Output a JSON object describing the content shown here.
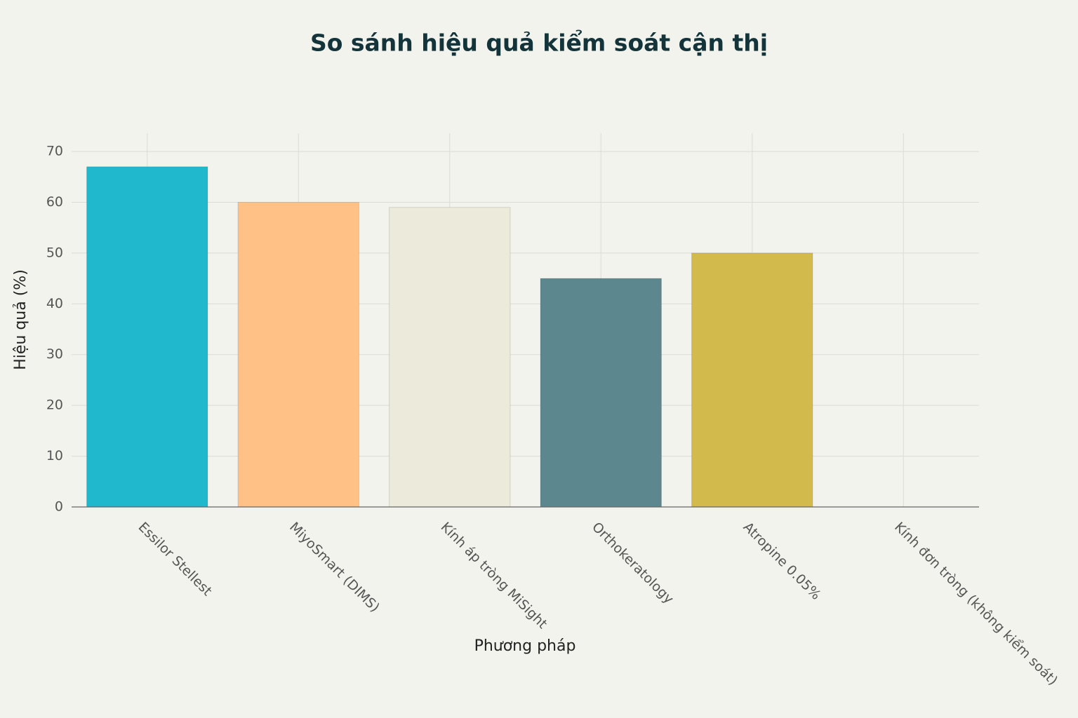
{
  "chart_data": {
    "type": "bar",
    "title": "So sánh hiệu quả kiểm soát cận thị",
    "x_label": "Phương pháp",
    "y_label": "Hiệu quả (%)",
    "categories": [
      "Essilor Stellest",
      "MiyoSmart (DIMS)",
      "Kính áp tròng MiSight",
      "Orthokeratology",
      "Atropine 0.05%",
      "Kính đơn tròng (không kiểm soát)"
    ],
    "values": [
      67,
      60,
      59,
      45,
      50,
      0
    ],
    "colors": [
      "#1fb8cd",
      "#ffc185",
      "#eceadb",
      "#5d878f",
      "#d2ba4c",
      "#b4413c"
    ],
    "ylim": [
      0,
      73.6
    ],
    "yticks": [
      0,
      10,
      20,
      30,
      40,
      50,
      60,
      70
    ],
    "grid": true
  }
}
